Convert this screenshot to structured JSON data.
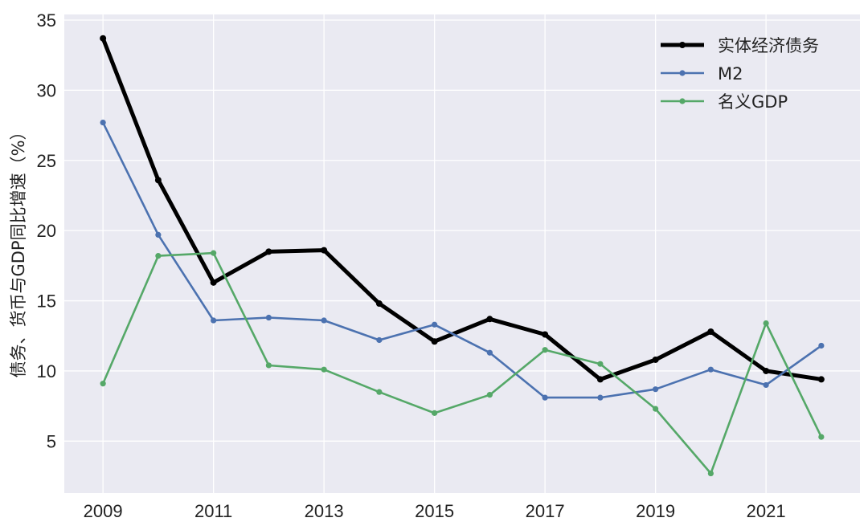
{
  "chart_data": {
    "type": "line",
    "title": "",
    "xlabel": "",
    "ylabel": "债务、货币与GDP同比增速（%）",
    "x": [
      2009,
      2010,
      2011,
      2012,
      2013,
      2014,
      2015,
      2016,
      2017,
      2018,
      2019,
      2020,
      2021,
      2022
    ],
    "x_ticks": [
      "2009",
      "2011",
      "2013",
      "2015",
      "2017",
      "2019",
      "2021"
    ],
    "y_ticks": [
      "5",
      "10",
      "15",
      "20",
      "25",
      "30",
      "35"
    ],
    "xlim": [
      2008.3,
      2022.7
    ],
    "ylim": [
      1.3,
      35.4
    ],
    "grid": true,
    "legend_position": "top-right",
    "series": [
      {
        "name": "实体经济债务",
        "color": "#000000",
        "values": [
          33.7,
          23.6,
          16.3,
          18.5,
          18.6,
          14.8,
          12.1,
          13.7,
          12.6,
          9.4,
          10.8,
          12.8,
          10.0,
          9.4
        ]
      },
      {
        "name": "M2",
        "color": "#4c72b0",
        "values": [
          27.7,
          19.7,
          13.6,
          13.8,
          13.6,
          12.2,
          13.3,
          11.3,
          8.1,
          8.1,
          8.7,
          10.1,
          9.0,
          11.8
        ]
      },
      {
        "name": "名义GDP",
        "color": "#55a868",
        "values": [
          9.1,
          18.2,
          18.4,
          10.4,
          10.1,
          8.5,
          7.0,
          8.3,
          11.5,
          10.5,
          7.3,
          2.7,
          13.4,
          5.3
        ]
      }
    ]
  }
}
